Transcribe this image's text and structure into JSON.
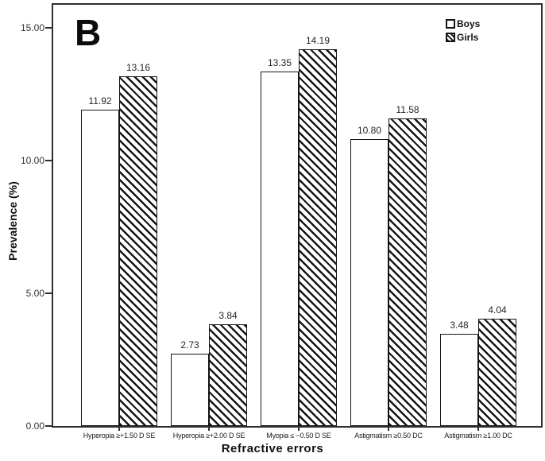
{
  "chart_data": {
    "type": "bar",
    "panel_label": "B",
    "xlabel": "Refractive errors",
    "ylabel": "Prevalence (%)",
    "categories": [
      "Hyperopia ≥+1.50 D SE",
      "Hyperopia ≥+2.00 D SE",
      "Myopia ≤ −0.50 D SE",
      "Astigmatism ≥0.50 DC",
      "Astigmatism ≥1.00 DC"
    ],
    "series": [
      {
        "name": "Boys",
        "fill": "open",
        "values": [
          11.92,
          2.73,
          13.35,
          10.8,
          3.48
        ],
        "value_labels": [
          "11.92",
          "2.73",
          "13.35",
          "10.80",
          "3.48"
        ]
      },
      {
        "name": "Girls",
        "fill": "hatched",
        "values": [
          13.16,
          3.84,
          14.19,
          11.58,
          4.04
        ],
        "value_labels": [
          "13.16",
          "3.84",
          "14.19",
          "11.58",
          "4.04"
        ]
      }
    ],
    "ylim": [
      0,
      15.9
    ],
    "yticks": [
      0,
      5,
      10,
      15
    ],
    "ytick_labels": [
      "0.00",
      "5.00",
      "10.00",
      "15.00"
    ],
    "value_labels_shown": true,
    "grid": false,
    "legend_position": "top-right",
    "colors": {
      "bar_fill": "#ffffff",
      "bar_border": "#141414",
      "hatch": "#161616",
      "axis": "#2e2e2e",
      "text": "#1a1a1a",
      "background": "#ffffff"
    }
  }
}
